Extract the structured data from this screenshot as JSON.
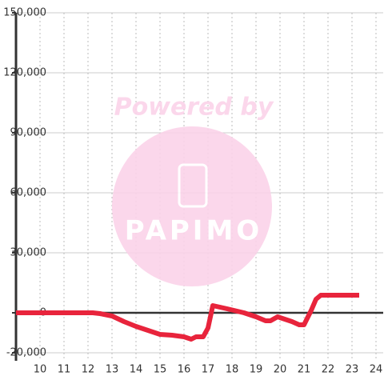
{
  "chart_data": {
    "type": "line",
    "watermark_top": "Powered by",
    "watermark_logo": "PAPIMO",
    "x": [
      9.0,
      12.2,
      12.5,
      13.0,
      13.5,
      14.0,
      14.5,
      15.0,
      15.5,
      16.0,
      16.3,
      16.5,
      16.8,
      17.0,
      17.2,
      17.5,
      17.8,
      18.5,
      19.0,
      19.4,
      19.6,
      19.9,
      20.1,
      20.5,
      20.8,
      21.0,
      21.3,
      21.5,
      21.7,
      23.3
    ],
    "series": [
      {
        "color": "#e8243c",
        "values": [
          0,
          0,
          -400,
          -1600,
          -4400,
          -6800,
          -8800,
          -10800,
          -11200,
          -12000,
          -13200,
          -12000,
          -12000,
          -7600,
          3600,
          2800,
          2000,
          0,
          -2000,
          -4000,
          -4000,
          -2000,
          -2800,
          -4400,
          -6000,
          -6000,
          1200,
          6800,
          8800,
          8800
        ]
      }
    ],
    "xlim": [
      9,
      24.3
    ],
    "xticks": [
      10,
      11,
      12,
      13,
      14,
      15,
      16,
      17,
      18,
      19,
      20,
      21,
      22,
      23,
      24
    ],
    "ylim": [
      -24000,
      150000
    ],
    "yticks": [
      {
        "value": -20000,
        "label": "-20,000"
      },
      0,
      {
        "value": 30000,
        "label": "30,000"
      },
      {
        "value": 60000,
        "label": "60,000"
      },
      {
        "value": 90000,
        "label": "90,000"
      },
      {
        "value": 120000,
        "label": "120,000"
      },
      {
        "value": 150000,
        "label": "150,000"
      }
    ],
    "grid": true
  }
}
